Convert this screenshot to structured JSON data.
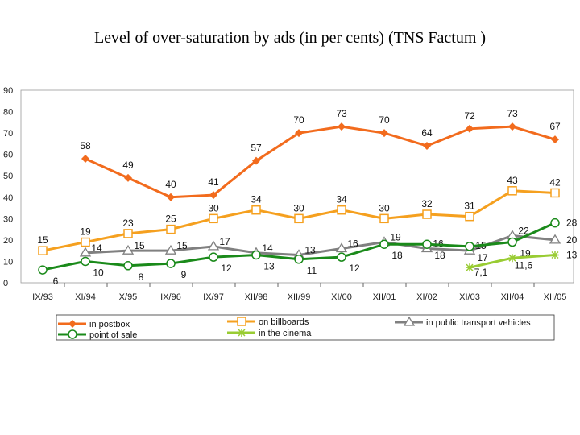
{
  "chart_data": {
    "type": "line",
    "title": "Level of over-saturation by ads (in per cents) (TNS Factum )",
    "categories": [
      "IX/93",
      "XI/94",
      "X/95",
      "IX/96",
      "IX/97",
      "XII/98",
      "XII/99",
      "XI/00",
      "XII/01",
      "XI/02",
      "XI/03",
      "XII/04",
      "XII/05"
    ],
    "ylim": [
      0,
      90
    ],
    "yticks": [
      0,
      10,
      20,
      30,
      40,
      50,
      60,
      70,
      80,
      90
    ],
    "legend_placement": "bottom",
    "series": [
      {
        "name": "in postbox",
        "color": "#f26b1d",
        "marker": "diamond",
        "values": [
          null,
          58,
          49,
          40,
          41,
          57,
          70,
          73,
          70,
          64,
          72,
          73,
          67
        ],
        "labels": [
          "",
          "58",
          "49",
          "40",
          "41",
          "57",
          "70",
          "73",
          "70",
          "64",
          "72",
          "73",
          "67"
        ]
      },
      {
        "name": "on billboards",
        "color": "#f5a01f",
        "marker": "square",
        "values": [
          15,
          19,
          23,
          25,
          30,
          34,
          30,
          34,
          30,
          32,
          31,
          43,
          42
        ],
        "labels": [
          "15",
          "19",
          "23",
          "25",
          "30",
          "34",
          "30",
          "34",
          "30",
          "32",
          "31",
          "43",
          "42"
        ]
      },
      {
        "name": "in public transport vehicles",
        "color": "#808080",
        "marker": "triangle",
        "values": [
          null,
          14,
          15,
          15,
          17,
          14,
          13,
          16,
          19,
          16,
          15,
          22,
          20
        ],
        "labels": [
          "",
          "14",
          "15",
          "15",
          "17",
          "14",
          "13",
          "16",
          "19",
          "16",
          "15",
          "22",
          "20"
        ]
      },
      {
        "name": "point of sale",
        "color": "#1a8a1a",
        "marker": "circle",
        "values": [
          6,
          10,
          8,
          9,
          12,
          13,
          11,
          12,
          18,
          18,
          17,
          19,
          28
        ],
        "labels": [
          "6",
          "10",
          "8",
          "9",
          "12",
          "13",
          "11",
          "12",
          "18",
          "18",
          "17",
          "19",
          "28"
        ]
      },
      {
        "name": "in the cinema",
        "color": "#99cc33",
        "marker": "star",
        "values": [
          null,
          null,
          null,
          null,
          null,
          null,
          null,
          null,
          null,
          null,
          7.1,
          11.6,
          13
        ],
        "labels": [
          "",
          "",
          "",
          "",
          "",
          "",
          "",
          "",
          "",
          "",
          "7,1",
          "11,6",
          "13"
        ]
      }
    ]
  }
}
